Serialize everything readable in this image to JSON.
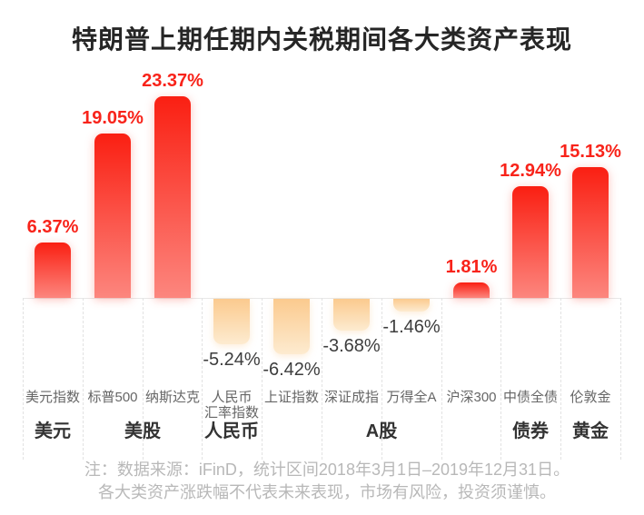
{
  "title": "特朗普上期任期内关税期间各大类资产表现",
  "note": {
    "lines": [
      "注：数据来源：iFinD，统计区间2018年3月1日–2019年12月31日。",
      "各大类资产涨跌幅不代表未来表现，市场有风险，投资须谨慎。"
    ]
  },
  "chart_data": {
    "type": "bar",
    "title": "特朗普上期任期内关税期间各大类资产表现",
    "unit": "%",
    "ylim": [
      -8,
      26
    ],
    "grid": "column-separators-dashed",
    "legend": "none",
    "bars": [
      {
        "name": "美元指数",
        "name_lines": [
          "美元指数"
        ],
        "value": 6.37,
        "display": "6.37%",
        "group": "美元"
      },
      {
        "name": "标普500",
        "name_lines": [
          "标普500"
        ],
        "value": 19.05,
        "display": "19.05%",
        "group": "美股"
      },
      {
        "name": "纳斯达克",
        "name_lines": [
          "纳斯达克"
        ],
        "value": 23.37,
        "display": "23.37%",
        "group": "美股"
      },
      {
        "name": "人民币汇率指数",
        "name_lines": [
          "人民币",
          "汇率指数"
        ],
        "value": -5.24,
        "display": "-5.24%",
        "group": "人民币"
      },
      {
        "name": "上证指数",
        "name_lines": [
          "上证指数"
        ],
        "value": -6.42,
        "display": "-6.42%",
        "group": "A股"
      },
      {
        "name": "深证成指",
        "name_lines": [
          "深证成指"
        ],
        "value": -3.68,
        "display": "-3.68%",
        "group": "A股"
      },
      {
        "name": "万得全A",
        "name_lines": [
          "万得全A"
        ],
        "value": -1.46,
        "display": "-1.46%",
        "group": "A股"
      },
      {
        "name": "沪深300",
        "name_lines": [
          "沪深300"
        ],
        "value": 1.81,
        "display": "1.81%",
        "group": "A股"
      },
      {
        "name": "中债全债",
        "name_lines": [
          "中债全债"
        ],
        "value": 12.94,
        "display": "12.94%",
        "group": "债券"
      },
      {
        "name": "伦敦金",
        "name_lines": [
          "伦敦金"
        ],
        "value": 15.13,
        "display": "15.13%",
        "group": "黄金"
      }
    ],
    "groups": [
      {
        "label": "美元",
        "span": [
          0,
          0
        ]
      },
      {
        "label": "美股",
        "span": [
          1,
          2
        ]
      },
      {
        "label": "人民币",
        "span": [
          3,
          3
        ]
      },
      {
        "label": "A股",
        "span": [
          4,
          7
        ]
      },
      {
        "label": "债券",
        "span": [
          8,
          8
        ]
      },
      {
        "label": "黄金",
        "span": [
          9,
          9
        ]
      }
    ],
    "colors": {
      "positive_bar_top": "#fa1f12",
      "positive_bar_bottom": "#fc867e",
      "negative_bar_top": "#fbca8e",
      "negative_bar_bottom": "#fdebd0",
      "positive_value_label": "#f8231a",
      "negative_value_label": "#3d3d3d",
      "axis_line": "#e8e8e8",
      "grid_dash": "#e2e2e2",
      "title_text": "#262626",
      "name_label": "#666666",
      "group_label": "#333333",
      "note_text": "#b8b8b8"
    }
  }
}
